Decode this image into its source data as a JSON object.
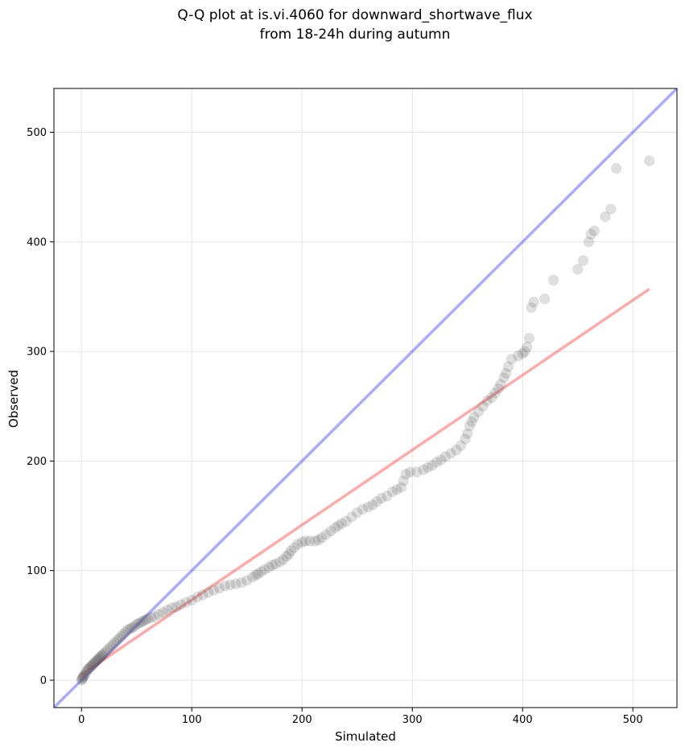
{
  "chart_data": {
    "type": "scatter",
    "title": [
      "Q-Q plot at is.vi.4060 for downward_shortwave_flux",
      "from 18-24h during autumn"
    ],
    "xlabel": "Simulated",
    "ylabel": "Observed",
    "xlim": [
      -25,
      540
    ],
    "ylim": [
      -25,
      540
    ],
    "xticks": [
      0,
      100,
      200,
      300,
      400,
      500
    ],
    "yticks": [
      0,
      100,
      200,
      300,
      400,
      500
    ],
    "grid": true,
    "series": [
      {
        "kind": "points",
        "color": "#555555",
        "points": [
          [
            0,
            0
          ],
          [
            0.5,
            1
          ],
          [
            1,
            2
          ],
          [
            1.5,
            3
          ],
          [
            2,
            4
          ],
          [
            3,
            5
          ],
          [
            4,
            7
          ],
          [
            5,
            9
          ],
          [
            6,
            10
          ],
          [
            7,
            11
          ],
          [
            8,
            12
          ],
          [
            9,
            13
          ],
          [
            10,
            14
          ],
          [
            11,
            15
          ],
          [
            12,
            16
          ],
          [
            13,
            17
          ],
          [
            14,
            18
          ],
          [
            15,
            19
          ],
          [
            16,
            20
          ],
          [
            17,
            21
          ],
          [
            18,
            22
          ],
          [
            19,
            23
          ],
          [
            20,
            24
          ],
          [
            22,
            26
          ],
          [
            24,
            28
          ],
          [
            26,
            30
          ],
          [
            28,
            32
          ],
          [
            30,
            34
          ],
          [
            32,
            36
          ],
          [
            34,
            38
          ],
          [
            36,
            40
          ],
          [
            38,
            42
          ],
          [
            40,
            44
          ],
          [
            42,
            46
          ],
          [
            44,
            47
          ],
          [
            46,
            48
          ],
          [
            48,
            49
          ],
          [
            50,
            51
          ],
          [
            52,
            52
          ],
          [
            54,
            53
          ],
          [
            56,
            54
          ],
          [
            58,
            55
          ],
          [
            60,
            56
          ],
          [
            63,
            57
          ],
          [
            66,
            58
          ],
          [
            70,
            60
          ],
          [
            74,
            62
          ],
          [
            78,
            64
          ],
          [
            82,
            66
          ],
          [
            86,
            67
          ],
          [
            90,
            69
          ],
          [
            95,
            71
          ],
          [
            100,
            73
          ],
          [
            105,
            76
          ],
          [
            110,
            78
          ],
          [
            115,
            80
          ],
          [
            120,
            82
          ],
          [
            125,
            84
          ],
          [
            130,
            86
          ],
          [
            135,
            87
          ],
          [
            140,
            88
          ],
          [
            145,
            89
          ],
          [
            150,
            91
          ],
          [
            155,
            94
          ],
          [
            158,
            96
          ],
          [
            160,
            97
          ],
          [
            163,
            99
          ],
          [
            166,
            101
          ],
          [
            170,
            103
          ],
          [
            173,
            105
          ],
          [
            176,
            106
          ],
          [
            180,
            108
          ],
          [
            183,
            110
          ],
          [
            186,
            113
          ],
          [
            188,
            115
          ],
          [
            190,
            118
          ],
          [
            193,
            121
          ],
          [
            196,
            124
          ],
          [
            200,
            126
          ],
          [
            203,
            127
          ],
          [
            207,
            127
          ],
          [
            212,
            127
          ],
          [
            215,
            128
          ],
          [
            218,
            130
          ],
          [
            222,
            133
          ],
          [
            226,
            136
          ],
          [
            230,
            139
          ],
          [
            233,
            141
          ],
          [
            236,
            143
          ],
          [
            240,
            145
          ],
          [
            245,
            149
          ],
          [
            250,
            153
          ],
          [
            255,
            156
          ],
          [
            260,
            158
          ],
          [
            264,
            160
          ],
          [
            268,
            163
          ],
          [
            272,
            166
          ],
          [
            277,
            168
          ],
          [
            282,
            172
          ],
          [
            286,
            174
          ],
          [
            290,
            176
          ],
          [
            292,
            182
          ],
          [
            294,
            188
          ],
          [
            298,
            190
          ],
          [
            304,
            190
          ],
          [
            310,
            192
          ],
          [
            314,
            194
          ],
          [
            318,
            196
          ],
          [
            322,
            199
          ],
          [
            326,
            201
          ],
          [
            330,
            204
          ],
          [
            335,
            207
          ],
          [
            340,
            210
          ],
          [
            344,
            214
          ],
          [
            348,
            220
          ],
          [
            350,
            225
          ],
          [
            352,
            232
          ],
          [
            354,
            236
          ],
          [
            356,
            240
          ],
          [
            360,
            245
          ],
          [
            364,
            250
          ],
          [
            368,
            255
          ],
          [
            372,
            258
          ],
          [
            375,
            262
          ],
          [
            378,
            266
          ],
          [
            380,
            270
          ],
          [
            383,
            276
          ],
          [
            385,
            280
          ],
          [
            387,
            286
          ],
          [
            390,
            293
          ],
          [
            396,
            296
          ],
          [
            400,
            298
          ],
          [
            402,
            300
          ],
          [
            404,
            304
          ],
          [
            406,
            312
          ],
          [
            408,
            340
          ],
          [
            410,
            345
          ],
          [
            420,
            348
          ],
          [
            428,
            365
          ],
          [
            450,
            375
          ],
          [
            455,
            383
          ],
          [
            460,
            400
          ],
          [
            462,
            407
          ],
          [
            465,
            410
          ],
          [
            475,
            423
          ],
          [
            480,
            430
          ],
          [
            485,
            467
          ],
          [
            515,
            474
          ]
        ]
      },
      {
        "kind": "line",
        "name": "",
        "color": "#0000ff",
        "points": [
          [
            -25,
            -25
          ],
          [
            540,
            540
          ]
        ]
      },
      {
        "kind": "line",
        "name": "",
        "color": "#ff0000",
        "points": [
          [
            0,
            5
          ],
          [
            515,
            357
          ]
        ]
      }
    ]
  }
}
